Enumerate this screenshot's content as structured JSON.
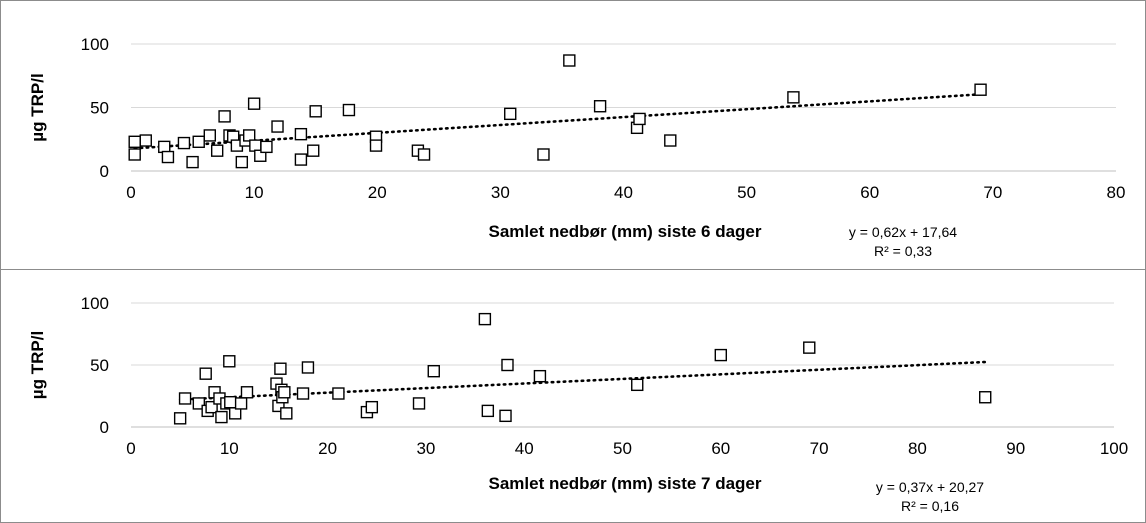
{
  "chart_data": [
    {
      "type": "scatter",
      "xlabel": "Samlet nedbør (mm) siste 6 dager",
      "ylabel": "µg TRP/l",
      "xlim": [
        0,
        80
      ],
      "ylim": [
        0,
        100
      ],
      "x_ticks": [
        "0",
        "10",
        "20",
        "30",
        "40",
        "50",
        "60",
        "70",
        "80"
      ],
      "y_ticks": [
        "0",
        "50",
        "100"
      ],
      "grid": true,
      "legend": "none",
      "trendline": {
        "type": "linear",
        "slope": 0.62,
        "intercept": 17.64,
        "equation": "y = 0,62x + 17,64",
        "r2": "R² = 0,33"
      },
      "series": [
        {
          "points": [
            [
              0.3,
              23
            ],
            [
              0.3,
              13
            ],
            [
              1.2,
              24
            ],
            [
              2.7,
              19
            ],
            [
              3.0,
              11
            ],
            [
              4.3,
              22
            ],
            [
              5.0,
              7
            ],
            [
              5.5,
              23
            ],
            [
              6.4,
              28
            ],
            [
              7.0,
              16
            ],
            [
              7.6,
              43
            ],
            [
              8.0,
              28
            ],
            [
              8.3,
              27
            ],
            [
              8.6,
              20
            ],
            [
              9.0,
              7
            ],
            [
              9.3,
              24
            ],
            [
              9.6,
              28
            ],
            [
              10.0,
              53
            ],
            [
              10.1,
              20
            ],
            [
              10.5,
              12
            ],
            [
              11.0,
              19
            ],
            [
              11.9,
              35
            ],
            [
              13.8,
              9
            ],
            [
              13.8,
              29
            ],
            [
              14.8,
              16
            ],
            [
              15.0,
              47
            ],
            [
              17.7,
              48
            ],
            [
              19.9,
              27
            ],
            [
              19.9,
              20
            ],
            [
              23.3,
              16
            ],
            [
              23.8,
              13
            ],
            [
              30.8,
              45
            ],
            [
              33.5,
              13
            ],
            [
              35.6,
              87
            ],
            [
              38.1,
              51
            ],
            [
              41.1,
              34
            ],
            [
              41.3,
              41
            ],
            [
              43.8,
              24
            ],
            [
              53.8,
              58
            ],
            [
              69.0,
              64
            ]
          ]
        }
      ]
    },
    {
      "type": "scatter",
      "xlabel": "Samlet nedbør (mm) siste 7 dager",
      "ylabel": "µg TRP/l",
      "xlim": [
        0,
        100
      ],
      "ylim": [
        0,
        100
      ],
      "x_ticks": [
        "0",
        "10",
        "20",
        "30",
        "40",
        "50",
        "60",
        "70",
        "80",
        "90",
        "100"
      ],
      "y_ticks": [
        "0",
        "50",
        "100"
      ],
      "grid": true,
      "legend": "none",
      "trendline": {
        "type": "linear",
        "slope": 0.37,
        "intercept": 20.27,
        "equation": "y = 0,37x + 20,27",
        "r2": "R² = 0,16"
      },
      "series": [
        {
          "points": [
            [
              5.0,
              7
            ],
            [
              5.5,
              23
            ],
            [
              6.9,
              19
            ],
            [
              7.6,
              43
            ],
            [
              7.8,
              13
            ],
            [
              8.2,
              16
            ],
            [
              8.5,
              28
            ],
            [
              9.0,
              23
            ],
            [
              9.2,
              8
            ],
            [
              9.7,
              19
            ],
            [
              10.0,
              53
            ],
            [
              10.1,
              20
            ],
            [
              10.6,
              11
            ],
            [
              11.2,
              19
            ],
            [
              11.8,
              28
            ],
            [
              14.8,
              35
            ],
            [
              15.0,
              17
            ],
            [
              15.2,
              47
            ],
            [
              15.3,
              30
            ],
            [
              15.4,
              24
            ],
            [
              15.6,
              28
            ],
            [
              15.8,
              11
            ],
            [
              17.5,
              27
            ],
            [
              18.0,
              48
            ],
            [
              21.1,
              27
            ],
            [
              24.0,
              12
            ],
            [
              24.5,
              16
            ],
            [
              29.3,
              19
            ],
            [
              30.8,
              45
            ],
            [
              36.0,
              87
            ],
            [
              36.3,
              13
            ],
            [
              38.1,
              9
            ],
            [
              38.3,
              50
            ],
            [
              41.6,
              41
            ],
            [
              51.5,
              34
            ],
            [
              60.0,
              58
            ],
            [
              69.0,
              64
            ],
            [
              86.9,
              24
            ]
          ]
        }
      ]
    }
  ]
}
